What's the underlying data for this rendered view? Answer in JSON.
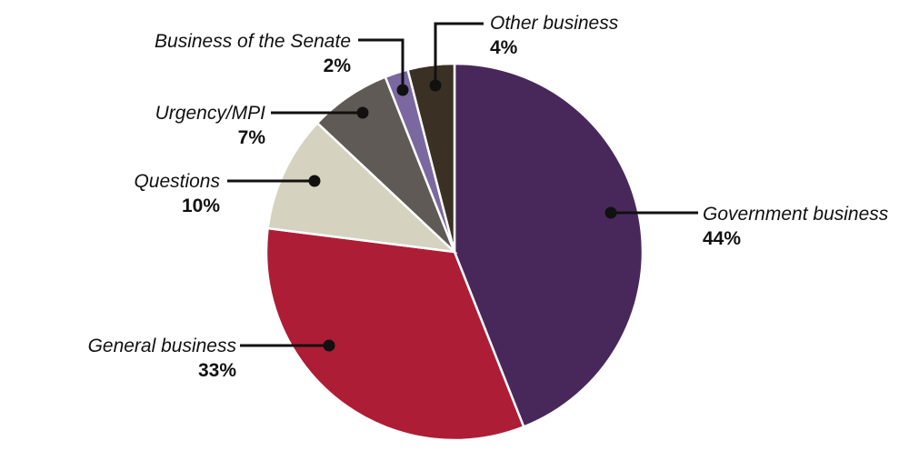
{
  "chart_data": {
    "type": "pie",
    "title": "",
    "unit": "%",
    "slices": [
      {
        "name": "Government business",
        "value": 44,
        "label": "44%",
        "color": "#48285a"
      },
      {
        "name": "General business",
        "value": 33,
        "label": "33%",
        "color": "#ae1d36"
      },
      {
        "name": "Questions",
        "value": 10,
        "label": "10%",
        "color": "#d5d2bf"
      },
      {
        "name": "Urgency/MPI",
        "value": 7,
        "label": "7%",
        "color": "#5f5a55"
      },
      {
        "name": "Business of the Senate",
        "value": 2,
        "label": "2%",
        "color": "#7b68a0"
      },
      {
        "name": "Other business",
        "value": 4,
        "label": "4%",
        "color": "#3a3024"
      }
    ]
  }
}
